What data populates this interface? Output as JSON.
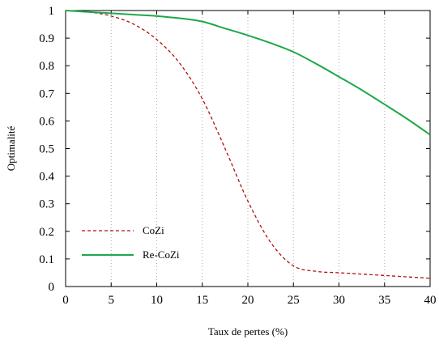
{
  "chart_data": {
    "type": "line",
    "xlabel": "Taux de pertes (%)",
    "ylabel": "Optimalité",
    "xlim": [
      0,
      40
    ],
    "ylim": [
      0,
      1
    ],
    "x_ticks": [
      "0",
      "5",
      "10",
      "15",
      "20",
      "25",
      "30",
      "35",
      "40"
    ],
    "y_ticks": [
      "0",
      "0.1",
      "0.2",
      "0.3",
      "0.4",
      "0.5",
      "0.6",
      "0.7",
      "0.8",
      "0.9",
      "1"
    ],
    "grid": "vertical dotted",
    "legend_position": "bottom-left",
    "series": [
      {
        "name": "CoZi",
        "color": "#b01010",
        "style": "dashed",
        "x": [
          0,
          2.5,
          5,
          7.5,
          10,
          12.5,
          15,
          17.5,
          20,
          22.5,
          25,
          27.5,
          30,
          32.5,
          35,
          37.5,
          40
        ],
        "y": [
          1.0,
          0.995,
          0.98,
          0.95,
          0.895,
          0.81,
          0.68,
          0.5,
          0.31,
          0.16,
          0.075,
          0.055,
          0.05,
          0.045,
          0.04,
          0.035,
          0.03
        ]
      },
      {
        "name": "Re-CoZi",
        "color": "#1fa84a",
        "style": "solid",
        "x": [
          0,
          2.5,
          5,
          7.5,
          10,
          12.5,
          15,
          17.5,
          20,
          22.5,
          25,
          27.5,
          30,
          32.5,
          35,
          37.5,
          40
        ],
        "y": [
          1.0,
          0.995,
          0.99,
          0.985,
          0.98,
          0.972,
          0.96,
          0.935,
          0.91,
          0.882,
          0.85,
          0.807,
          0.76,
          0.712,
          0.66,
          0.607,
          0.55
        ]
      }
    ]
  }
}
